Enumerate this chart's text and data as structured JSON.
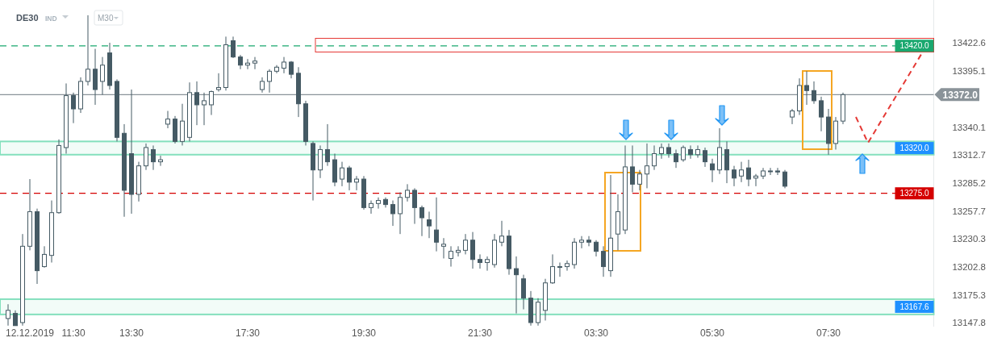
{
  "chart_data": {
    "type": "candlestick",
    "title": "DE30",
    "subtitle": "IND",
    "annotations": [
      "M30"
    ],
    "color": "#455a64",
    "categories": [
      null,
      null,
      null,
      "12.12.2019",
      null,
      null,
      null,
      null,
      null,
      "11:30",
      null,
      null,
      null,
      null,
      null,
      null,
      null,
      "13:30",
      null,
      null,
      null,
      null,
      null,
      null,
      null,
      null,
      null,
      null,
      null,
      null,
      null,
      null,
      null,
      "17:30",
      null,
      null,
      null,
      null,
      null,
      null,
      null,
      null,
      null,
      null,
      null,
      null,
      null,
      null,
      null,
      "19:30",
      null,
      null,
      null,
      null,
      null,
      null,
      null,
      null,
      null,
      null,
      null,
      null,
      null,
      null,
      null,
      "21:30",
      null,
      null,
      null,
      null,
      null,
      null,
      null,
      null,
      null,
      null,
      null,
      null,
      null,
      null,
      null,
      "03:30",
      null,
      null,
      null,
      null,
      null,
      null,
      null,
      null,
      null,
      null,
      null,
      null,
      null,
      null,
      null,
      "05:30",
      null,
      null,
      null,
      null,
      null,
      null,
      null,
      null,
      null,
      null,
      null,
      null,
      null,
      null,
      null,
      "07:30",
      null,
      null,
      null,
      null,
      null,
      null,
      null,
      null,
      null,
      null,
      null,
      null,
      null,
      null
    ],
    "ohlc": [
      [
        13152,
        13166,
        13145,
        13160
      ],
      [
        13157,
        13160,
        13145,
        13145
      ],
      [
        13148,
        13235,
        13145,
        13223
      ],
      [
        13223,
        13289,
        13219,
        13257
      ],
      [
        13257,
        13260,
        13186,
        13199
      ],
      [
        13203,
        13223,
        13202,
        13215
      ],
      [
        13214,
        13268,
        13207,
        13256
      ],
      [
        13256,
        13328,
        13255,
        13322
      ],
      [
        13320,
        13383,
        13314,
        13371
      ],
      [
        13371,
        13374,
        13344,
        13358
      ],
      [
        13358,
        13389,
        13354,
        13385
      ],
      [
        13385,
        13450,
        13381,
        13397
      ],
      [
        13397,
        13417,
        13362,
        13377
      ],
      [
        13385,
        13409,
        13372,
        13401
      ],
      [
        13413,
        13423,
        13377,
        13381
      ],
      [
        13385,
        13387,
        13326,
        13330
      ],
      [
        13334,
        13343,
        13252,
        13278
      ],
      [
        13314,
        13377,
        13255,
        13274
      ],
      [
        13274,
        13306,
        13267,
        13302
      ],
      [
        13302,
        13324,
        13298,
        13320
      ],
      [
        13318,
        13322,
        13298,
        13306
      ],
      [
        13306,
        13312,
        13302,
        13308
      ],
      [
        13343,
        13356,
        13339,
        13348
      ],
      [
        13348,
        13351,
        13324,
        13326
      ],
      [
        13326,
        13363,
        13322,
        13346
      ],
      [
        13330,
        13384,
        13326,
        13374
      ],
      [
        13374,
        13385,
        13342,
        13362
      ],
      [
        13362,
        13374,
        13342,
        13366
      ],
      [
        13362,
        13376,
        13352,
        13375
      ],
      [
        13377,
        13393,
        13375,
        13379
      ],
      [
        13379,
        13429,
        13376,
        13421
      ],
      [
        13425,
        13429,
        13408,
        13409
      ],
      [
        13409,
        13411,
        13397,
        13401
      ],
      [
        13401,
        13407,
        13397,
        13403
      ],
      [
        13403,
        13409,
        13397,
        13405
      ],
      [
        13377,
        13389,
        13374,
        13385
      ],
      [
        13385,
        13397,
        13374,
        13395
      ],
      [
        13395,
        13401,
        13393,
        13399
      ],
      [
        13398,
        13409,
        13393,
        13404
      ],
      [
        13404,
        13405,
        13388,
        13392
      ],
      [
        13393,
        13399,
        13350,
        13363
      ],
      [
        13363,
        13366,
        13322,
        13326
      ],
      [
        13324,
        13326,
        13268,
        13298
      ],
      [
        13298,
        13322,
        13290,
        13318
      ],
      [
        13318,
        13343,
        13302,
        13306
      ],
      [
        13308,
        13314,
        13282,
        13286
      ],
      [
        13289,
        13306,
        13282,
        13300
      ],
      [
        13300,
        13302,
        13278,
        13286
      ],
      [
        13286,
        13292,
        13278,
        13289
      ],
      [
        13289,
        13292,
        13259,
        13261
      ],
      [
        13261,
        13268,
        13255,
        13265
      ],
      [
        13265,
        13271,
        13260,
        13268
      ],
      [
        13269,
        13271,
        13261,
        13264
      ],
      [
        13264,
        13268,
        13243,
        13255
      ],
      [
        13255,
        13276,
        13235,
        13271
      ],
      [
        13271,
        13284,
        13267,
        13278
      ],
      [
        13278,
        13280,
        13245,
        13261
      ],
      [
        13261,
        13263,
        13233,
        13251
      ],
      [
        13249,
        13257,
        13231,
        13243
      ],
      [
        13239,
        13271,
        13218,
        13227
      ],
      [
        13223,
        13231,
        13211,
        13225
      ],
      [
        13211,
        13223,
        13203,
        13218
      ],
      [
        13217,
        13223,
        13213,
        13219
      ],
      [
        13219,
        13235,
        13215,
        13229
      ],
      [
        13229,
        13237,
        13201,
        13210
      ],
      [
        13210,
        13215,
        13201,
        13207
      ],
      [
        13207,
        13213,
        13199,
        13210
      ],
      [
        13205,
        13235,
        13202,
        13229
      ],
      [
        13227,
        13248,
        13223,
        13233
      ],
      [
        13233,
        13239,
        13195,
        13201
      ],
      [
        13201,
        13213,
        13157,
        13195
      ],
      [
        13191,
        13195,
        13161,
        13172
      ],
      [
        13172,
        13179,
        13145,
        13148
      ],
      [
        13148,
        13172,
        13145,
        13168
      ],
      [
        13160,
        13191,
        13150,
        13187
      ],
      [
        13187,
        13215,
        13186,
        13203
      ],
      [
        13203,
        13207,
        13193,
        13203
      ],
      [
        13203,
        13209,
        13199,
        13206
      ],
      [
        13205,
        13231,
        13201,
        13227
      ],
      [
        13227,
        13233,
        13221,
        13229
      ],
      [
        13229,
        13233,
        13223,
        13227
      ],
      [
        13227,
        13229,
        13213,
        13218
      ],
      [
        13218,
        13223,
        13193,
        13203
      ],
      [
        13199,
        13293,
        13193,
        13231
      ],
      [
        13235,
        13274,
        13219,
        13257
      ],
      [
        13239,
        13322,
        13235,
        13301
      ],
      [
        13301,
        13322,
        13276,
        13284
      ],
      [
        13284,
        13298,
        13278,
        13294
      ],
      [
        13294,
        13324,
        13280,
        13302
      ],
      [
        13302,
        13322,
        13298,
        13314
      ],
      [
        13314,
        13324,
        13309,
        13320
      ],
      [
        13320,
        13324,
        13310,
        13314
      ],
      [
        13314,
        13318,
        13300,
        13306
      ],
      [
        13308,
        13322,
        13306,
        13320
      ],
      [
        13318,
        13322,
        13309,
        13313
      ],
      [
        13313,
        13322,
        13310,
        13318
      ],
      [
        13317,
        13320,
        13301,
        13306
      ],
      [
        13304,
        13309,
        13286,
        13298
      ],
      [
        13298,
        13339,
        13294,
        13320
      ],
      [
        13318,
        13326,
        13285,
        13298
      ],
      [
        13298,
        13302,
        13282,
        13290
      ],
      [
        13292,
        13306,
        13286,
        13298
      ],
      [
        13300,
        13308,
        13282,
        13289
      ],
      [
        13290,
        13294,
        13282,
        13292
      ],
      [
        13292,
        13300,
        13289,
        13297
      ],
      [
        13297,
        13300,
        13293,
        13297
      ],
      [
        13297,
        13300,
        13293,
        13296
      ],
      [
        13296,
        13298,
        13280,
        13282
      ],
      [
        13350,
        13358,
        13343,
        13356
      ],
      [
        13356,
        13388,
        13352,
        13381
      ],
      [
        13381,
        13395,
        13362,
        13376
      ],
      [
        13376,
        13385,
        13363,
        13366
      ],
      [
        13366,
        13370,
        13336,
        13350
      ],
      [
        13350,
        13358,
        13313,
        13324
      ],
      [
        13324,
        13350,
        13318,
        13346
      ],
      [
        13346,
        13374,
        13343,
        13372
      ],
      null,
      null,
      null,
      null,
      null,
      null,
      null,
      null,
      null,
      null,
      null,
      null
    ],
    "ylim": [
      13144,
      13465
    ],
    "yticks": [
      13422.6,
      13395.1,
      13340.1,
      13312.7,
      13285.2,
      13257.7,
      13230.3,
      13202.8,
      13175.3,
      13147.8
    ],
    "ref_lines": [
      {
        "axis": "y",
        "value": 13420,
        "label": "13420.0",
        "color": "#1aa86f",
        "line_style": "dashed"
      },
      {
        "axis": "y",
        "value": 13275,
        "label": "13275.0",
        "color": "#d50000",
        "line_style": "dashed"
      },
      {
        "axis": "y",
        "value": 13372,
        "label": "13372.0",
        "color": "#8a9399",
        "line_style": "solid"
      }
    ],
    "bands": [
      {
        "axis": "y",
        "from": 13313,
        "to": 13326,
        "label": "13320.0",
        "color": "#84e0bd"
      },
      {
        "axis": "y",
        "from": 13156,
        "to": 13171,
        "label": "13167.6",
        "color": "#84e0bd"
      }
    ]
  }
}
